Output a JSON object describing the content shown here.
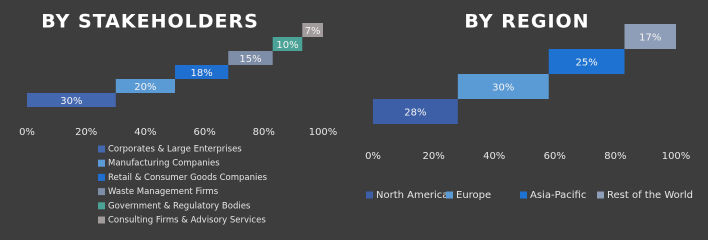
{
  "chart_data": [
    {
      "type": "waterfall",
      "title": "BY STAKEHOLDERS",
      "categories": [
        "Corporates & Large Enterprises",
        "Manufacturing Companies",
        "Retail & Consumer Goods Companies",
        "Waste Management Firms",
        "Government & Regulatory Bodies",
        "Consulting Firms & Advisory Services"
      ],
      "values": [
        30,
        20,
        18,
        15,
        10,
        7
      ],
      "value_labels": [
        "30%",
        "20%",
        "18%",
        "15%",
        "10%",
        "7%"
      ],
      "colors": [
        "#4468b0",
        "#5b9bd5",
        "#1f6fd0",
        "#7f8ea8",
        "#4aa396",
        "#a39c9c"
      ],
      "xlim": [
        0,
        100
      ],
      "xticks": [
        {
          "value": 0,
          "label": "0%"
        },
        {
          "value": 20,
          "label": "20%"
        },
        {
          "value": 40,
          "label": "40%"
        },
        {
          "value": 60,
          "label": "60%"
        },
        {
          "value": 80,
          "label": "80%"
        },
        {
          "value": 100,
          "label": "100%"
        }
      ],
      "legend": "bottom-vertical"
    },
    {
      "type": "waterfall",
      "title": "BY REGION",
      "categories": [
        "North America",
        "Europe",
        "Asia-Pacific",
        "Rest of the World"
      ],
      "values": [
        28,
        30,
        25,
        17
      ],
      "value_labels": [
        "28%",
        "30%",
        "25%",
        "17%"
      ],
      "colors": [
        "#3c5fa8",
        "#5b9bd5",
        "#1e73d2",
        "#8e9db8"
      ],
      "xlim": [
        0,
        100
      ],
      "xticks": [
        {
          "value": 0,
          "label": "0%"
        },
        {
          "value": 20,
          "label": "20%"
        },
        {
          "value": 40,
          "label": "40%"
        },
        {
          "value": 60,
          "label": "60%"
        },
        {
          "value": 80,
          "label": "80%"
        },
        {
          "value": 100,
          "label": "100%"
        }
      ],
      "legend": "bottom-horizontal"
    }
  ]
}
